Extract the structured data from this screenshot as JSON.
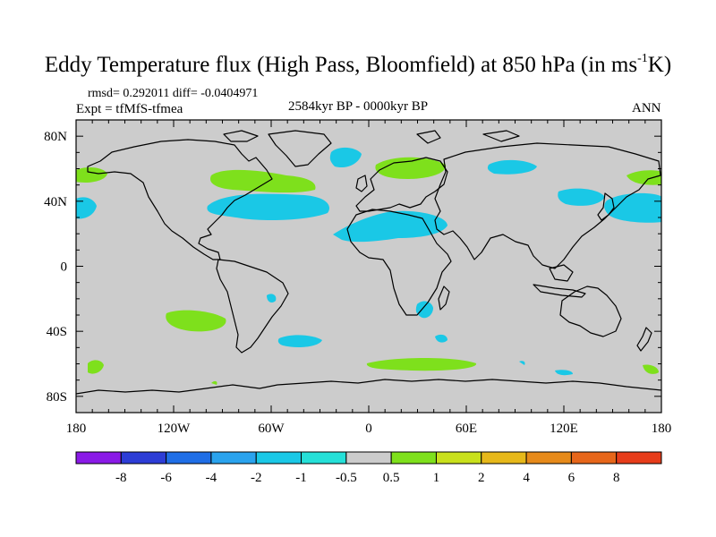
{
  "title": {
    "main": "Eddy Temperature flux (High Pass, Bloomfield) at 850 hPa (in ms",
    "sup": "-1",
    "unit_tail": "K)"
  },
  "stats": "rmsd= 0.292011 diff= -0.0404971",
  "experiment": "Expt = tfMfS-tfmea",
  "period": "2584kyr BP - 0000kyr BP",
  "season": "ANN",
  "axes": {
    "x_ticks": [
      "180",
      "120W",
      "60W",
      "0",
      "60E",
      "120E",
      "180"
    ],
    "y_ticks": [
      "80N",
      "40N",
      "0",
      "40S",
      "80S"
    ]
  },
  "colorbar": {
    "labels": [
      "-8",
      "-6",
      "-4",
      "-2",
      "-1",
      "-0.5",
      "0.5",
      "1",
      "2",
      "4",
      "6",
      "8"
    ],
    "colors": [
      "#8a1ae6",
      "#2d3dd6",
      "#1f6ee6",
      "#2aa3ee",
      "#1ac8e6",
      "#25e0d8",
      "#cccccc",
      "#7ee01c",
      "#c9e01c",
      "#e6b81a",
      "#e68a1a",
      "#e6661a",
      "#e63c1a"
    ]
  },
  "colors": {
    "background_field": "#cccccc",
    "positive_weak": "#7ee01c",
    "negative_weak": "#25dcdc",
    "negative_mod": "#1ac8e6",
    "coast": "#000000"
  }
}
